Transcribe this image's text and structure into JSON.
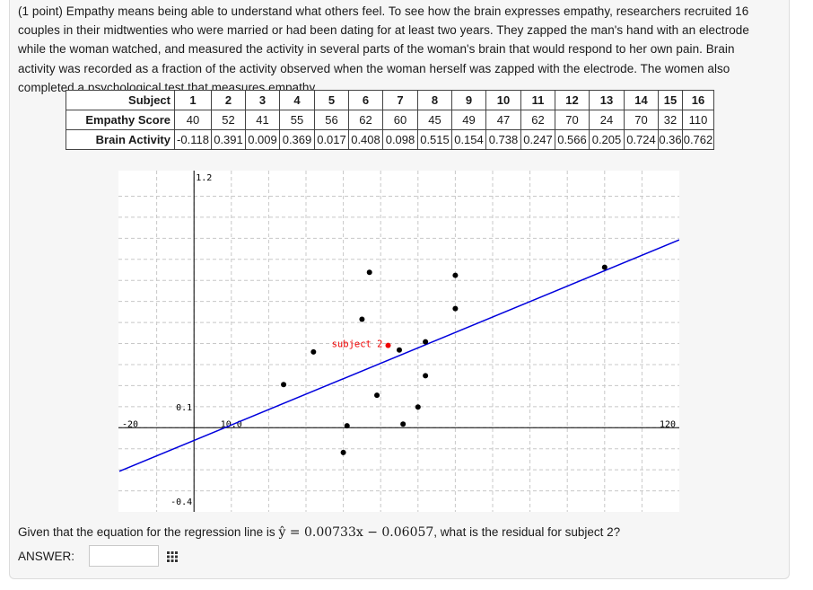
{
  "problem": {
    "lines": [
      "(1 point) Empathy means being able to understand what others feel. To see how the brain expresses empathy, researchers recruited 16",
      "couples in their midtwenties who were married or had been dating for at least two years. They zapped the man's hand with an electrode",
      "while the woman watched, and measured the activity in several parts of the woman's brain that would respond to her own pain. Brain",
      "activity was recorded as a fraction of the activity observed when the woman herself was zapped with the electrode. The women also",
      "completed a psychological test that measures empathy."
    ]
  },
  "table": {
    "row_labels": [
      "Subject",
      "Empathy Score",
      "Brain Activity"
    ],
    "subjects": [
      "1",
      "2",
      "3",
      "4",
      "5",
      "6",
      "7",
      "8",
      "9",
      "10",
      "11",
      "12",
      "13",
      "14",
      "15",
      "16"
    ],
    "empathy": [
      "40",
      "52",
      "41",
      "55",
      "56",
      "62",
      "60",
      "45",
      "49",
      "47",
      "62",
      "70",
      "24",
      "70",
      "32",
      "110"
    ],
    "brain": [
      "-0.118",
      "0.391",
      "0.009",
      "0.369",
      "0.017",
      "0.408",
      "0.098",
      "0.515",
      "0.154",
      "0.738",
      "0.247",
      "0.566",
      "0.205",
      "0.724",
      "0.36",
      "0.762"
    ]
  },
  "chart_data": {
    "type": "scatter",
    "x": [
      40,
      52,
      41,
      55,
      56,
      62,
      60,
      45,
      49,
      47,
      62,
      70,
      24,
      70,
      32,
      110
    ],
    "y": [
      -0.118,
      0.391,
      0.009,
      0.369,
      0.017,
      0.408,
      0.098,
      0.515,
      0.154,
      0.738,
      0.247,
      0.566,
      0.205,
      0.724,
      0.36,
      0.762
    ],
    "xlim": [
      -20,
      130
    ],
    "ylim": [
      -0.4,
      1.2
    ],
    "tick_labels": {
      "x_left": "-20",
      "x_mid": "10.0",
      "x_right": "120",
      "y_top": "1.2",
      "y_mid": "0.1",
      "y_bottom": "-0.4"
    },
    "highlight": {
      "index": 1,
      "label": "subject 2",
      "color": "#ee0000"
    },
    "regression": {
      "slope": 0.00733,
      "intercept": -0.06057,
      "color": "#0000dd"
    },
    "grid": true,
    "point_color": "#000000"
  },
  "question": {
    "prefix": "Given that the equation for the regression line is",
    "equation": "ŷ = 0.00733x − 0.06057",
    "suffix": ", what is the residual for subject 2?"
  },
  "answer": {
    "label": "ANSWER:",
    "value": ""
  }
}
